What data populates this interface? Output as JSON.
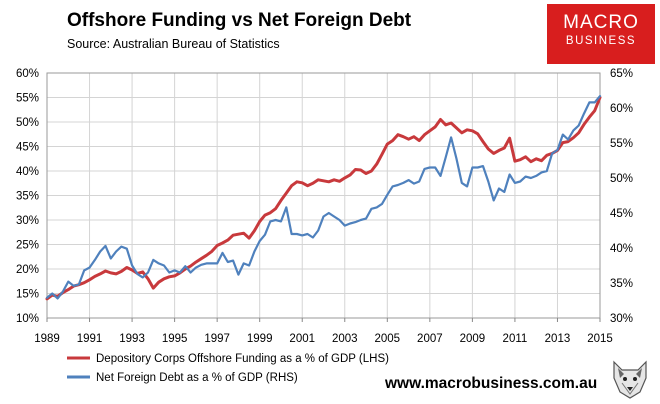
{
  "header": {
    "title": "Offshore Funding vs Net Foreign Debt",
    "source": "Source:  Australian Bureau of Statistics"
  },
  "branding": {
    "logo_line1": "MACRO",
    "logo_line2": "BUSINESS",
    "website": "www.macrobusiness.com.au",
    "logo_color": "#d81e1e"
  },
  "chart_data": {
    "type": "line",
    "x_tick_labels": [
      "1989",
      "1991",
      "1993",
      "1995",
      "1997",
      "1999",
      "2001",
      "2003",
      "2005",
      "2007",
      "2009",
      "2011",
      "2013",
      "2015"
    ],
    "xlim": [
      1989,
      2015
    ],
    "y_left": {
      "ylim": [
        10,
        60
      ],
      "ticks": [
        "10%",
        "15%",
        "20%",
        "25%",
        "30%",
        "35%",
        "40%",
        "45%",
        "50%",
        "55%",
        "60%"
      ]
    },
    "y_right": {
      "ylim": [
        30,
        65
      ],
      "ticks": [
        "30%",
        "35%",
        "40%",
        "45%",
        "50%",
        "55%",
        "60%",
        "65%"
      ]
    },
    "grid": true,
    "legend_position": "bottom-left",
    "series": [
      {
        "name": "Depository Corps Offshore Funding as a % of GDP (LHS)",
        "axis": "left",
        "color": "#c8393c",
        "x": [
          1989.0,
          1989.25,
          1989.5,
          1989.75,
          1990.0,
          1990.25,
          1990.5,
          1990.75,
          1991.0,
          1991.25,
          1991.5,
          1991.75,
          1992.0,
          1992.25,
          1992.5,
          1992.75,
          1993.0,
          1993.25,
          1993.5,
          1993.75,
          1994.0,
          1994.25,
          1994.5,
          1994.75,
          1995.0,
          1995.25,
          1995.5,
          1995.75,
          1996.0,
          1996.25,
          1996.5,
          1996.75,
          1997.0,
          1997.25,
          1997.5,
          1997.75,
          1998.0,
          1998.25,
          1998.5,
          1998.75,
          1999.0,
          1999.25,
          1999.5,
          1999.75,
          2000.0,
          2000.25,
          2000.5,
          2000.75,
          2001.0,
          2001.25,
          2001.5,
          2001.75,
          2002.0,
          2002.25,
          2002.5,
          2002.75,
          2003.0,
          2003.25,
          2003.5,
          2003.75,
          2004.0,
          2004.25,
          2004.5,
          2004.75,
          2005.0,
          2005.25,
          2005.5,
          2005.75,
          2006.0,
          2006.25,
          2006.5,
          2006.75,
          2007.0,
          2007.25,
          2007.5,
          2007.75,
          2008.0,
          2008.25,
          2008.5,
          2008.75,
          2009.0,
          2009.25,
          2009.5,
          2009.75,
          2010.0,
          2010.25,
          2010.5,
          2010.75,
          2011.0,
          2011.25,
          2011.5,
          2011.75,
          2012.0,
          2012.25,
          2012.5,
          2012.75,
          2013.0,
          2013.25,
          2013.5,
          2013.75,
          2014.0,
          2014.25,
          2014.5,
          2014.75,
          2015.0
        ],
        "values": [
          13.9,
          14.7,
          14.4,
          15.2,
          15.8,
          16.5,
          16.8,
          17.2,
          17.8,
          18.5,
          19.0,
          19.6,
          19.2,
          19.0,
          19.5,
          20.3,
          19.8,
          19.1,
          19.4,
          18.0,
          16.1,
          17.3,
          18.0,
          18.4,
          18.6,
          19.2,
          20.0,
          20.6,
          21.4,
          22.1,
          22.8,
          23.6,
          24.8,
          25.3,
          25.9,
          26.9,
          27.1,
          27.3,
          26.3,
          27.8,
          29.7,
          31.0,
          31.5,
          32.3,
          34.0,
          35.5,
          37.0,
          37.8,
          37.6,
          37.0,
          37.5,
          38.2,
          38.0,
          37.8,
          38.2,
          37.9,
          38.6,
          39.2,
          40.3,
          40.2,
          39.5,
          40.0,
          41.4,
          43.4,
          45.5,
          46.2,
          47.4,
          47.0,
          46.5,
          47.0,
          46.2,
          47.4,
          48.2,
          49.0,
          50.5,
          49.4,
          49.8,
          48.8,
          47.8,
          48.4,
          48.2,
          47.6,
          46.0,
          44.5,
          43.6,
          44.2,
          44.7,
          46.7,
          42.0,
          42.3,
          42.9,
          41.9,
          42.5,
          42.1,
          43.2,
          43.6,
          44.2,
          45.8,
          46.0,
          46.8,
          47.8,
          49.5,
          51.0,
          52.3,
          55.0
        ]
      },
      {
        "name": "Net Foreign Debt as a % of GDP (RHS)",
        "axis": "right",
        "color": "#4f81bd",
        "x": [
          1989.0,
          1989.25,
          1989.5,
          1989.75,
          1990.0,
          1990.25,
          1990.5,
          1990.75,
          1991.0,
          1991.25,
          1991.5,
          1991.75,
          1992.0,
          1992.25,
          1992.5,
          1992.75,
          1993.0,
          1993.25,
          1993.5,
          1993.75,
          1994.0,
          1994.25,
          1994.5,
          1994.75,
          1995.0,
          1995.25,
          1995.5,
          1995.75,
          1996.0,
          1996.25,
          1996.5,
          1996.75,
          1997.0,
          1997.25,
          1997.5,
          1997.75,
          1998.0,
          1998.25,
          1998.5,
          1998.75,
          1999.0,
          1999.25,
          1999.5,
          1999.75,
          2000.0,
          2000.25,
          2000.5,
          2000.75,
          2001.0,
          2001.25,
          2001.5,
          2001.75,
          2002.0,
          2002.25,
          2002.5,
          2002.75,
          2003.0,
          2003.25,
          2003.5,
          2003.75,
          2004.0,
          2004.25,
          2004.5,
          2004.75,
          2005.0,
          2005.25,
          2005.5,
          2005.75,
          2006.0,
          2006.25,
          2006.5,
          2006.75,
          2007.0,
          2007.25,
          2007.5,
          2007.75,
          2008.0,
          2008.25,
          2008.5,
          2008.75,
          2009.0,
          2009.25,
          2009.5,
          2009.75,
          2010.0,
          2010.25,
          2010.5,
          2010.75,
          2011.0,
          2011.25,
          2011.5,
          2011.75,
          2012.0,
          2012.25,
          2012.5,
          2012.75,
          2013.0,
          2013.25,
          2013.5,
          2013.75,
          2014.0,
          2014.25,
          2014.5,
          2014.75,
          2015.0
        ],
        "values": [
          32.9,
          33.5,
          32.8,
          33.8,
          35.2,
          34.6,
          34.8,
          36.8,
          37.2,
          38.3,
          39.5,
          40.3,
          38.5,
          39.5,
          40.2,
          39.9,
          37.5,
          36.3,
          35.8,
          36.5,
          38.3,
          37.8,
          37.5,
          36.5,
          36.8,
          36.5,
          37.4,
          36.5,
          37.2,
          37.6,
          37.8,
          37.8,
          37.8,
          39.3,
          38.0,
          38.2,
          36.2,
          37.8,
          37.5,
          39.5,
          41.0,
          41.9,
          43.8,
          44.0,
          43.8,
          45.8,
          42.0,
          42.0,
          41.8,
          42.0,
          41.5,
          42.5,
          44.5,
          45.0,
          44.5,
          44.0,
          43.2,
          43.5,
          43.7,
          44.0,
          44.2,
          45.6,
          45.8,
          46.3,
          47.6,
          48.8,
          49.0,
          49.3,
          49.7,
          49.2,
          49.5,
          51.3,
          51.5,
          51.5,
          50.3,
          53.0,
          55.8,
          52.8,
          49.3,
          48.8,
          51.5,
          51.5,
          51.7,
          49.5,
          46.8,
          48.5,
          48.0,
          50.5,
          49.3,
          49.5,
          50.2,
          50.0,
          50.3,
          50.8,
          51.0,
          53.5,
          54.0,
          56.2,
          55.5,
          56.8,
          57.5,
          59.2,
          60.8,
          60.8,
          61.7
        ]
      }
    ]
  }
}
